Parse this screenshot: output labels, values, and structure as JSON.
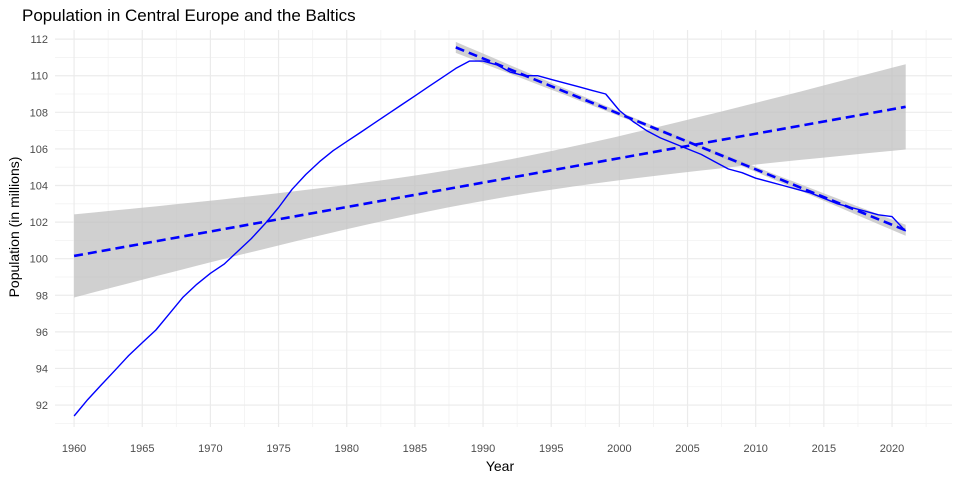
{
  "chart_data": {
    "type": "line",
    "title": "Population in Central Europe and the Baltics",
    "xlabel": "Year",
    "ylabel": "Population (in millions)",
    "xlim": [
      1958.6,
      2024.4
    ],
    "ylim": [
      90.8,
      112.5
    ],
    "x_ticks": [
      1960,
      1965,
      1970,
      1975,
      1980,
      1985,
      1990,
      1995,
      2000,
      2005,
      2010,
      2015,
      2020
    ],
    "y_ticks": [
      92,
      94,
      96,
      98,
      100,
      102,
      104,
      106,
      108,
      110,
      112
    ],
    "grid": true,
    "legend": "none",
    "colors": {
      "series": "#0000ff",
      "trend": "#0000ff",
      "band": "#bebebe"
    },
    "series": [
      {
        "x": [
          1960,
          1961,
          1962,
          1963,
          1964,
          1965,
          1966,
          1967,
          1968,
          1969,
          1970,
          1971,
          1972,
          1973,
          1974,
          1975,
          1976,
          1977,
          1978,
          1979,
          1980,
          1981,
          1982,
          1983,
          1984,
          1985,
          1986,
          1987,
          1988,
          1989,
          1990,
          1991,
          1992,
          1993,
          1994,
          1995,
          1996,
          1997,
          1998,
          1999,
          2000,
          2001,
          2002,
          2003,
          2004,
          2005,
          2006,
          2007,
          2008,
          2009,
          2010,
          2011,
          2012,
          2013,
          2014,
          2015,
          2016,
          2017,
          2018,
          2019,
          2020,
          2021
        ],
        "y": [
          91.4,
          92.3,
          93.1,
          93.9,
          94.7,
          95.4,
          96.1,
          97.0,
          97.9,
          98.6,
          99.2,
          99.7,
          100.4,
          101.1,
          101.9,
          102.8,
          103.8,
          104.6,
          105.3,
          105.9,
          106.4,
          106.9,
          107.4,
          107.9,
          108.4,
          108.9,
          109.4,
          109.9,
          110.4,
          110.8,
          110.8,
          110.6,
          110.2,
          110.0,
          110.0,
          109.8,
          109.6,
          109.4,
          109.2,
          109.0,
          108.1,
          107.5,
          107.0,
          106.6,
          106.3,
          106.0,
          105.7,
          105.3,
          104.9,
          104.7,
          104.4,
          104.2,
          104.0,
          103.8,
          103.6,
          103.3,
          103.0,
          102.8,
          102.6,
          102.4,
          102.3,
          101.5
        ]
      }
    ],
    "trend_lines": [
      {
        "x": [
          1960,
          2021
        ],
        "y": [
          100.15,
          108.3
        ],
        "band_lower": [
          97.85,
          106.05
        ],
        "band_upper": [
          102.45,
          110.6
        ],
        "band_mid": [
          1990,
          105.25,
          1.0
        ]
      },
      {
        "x": [
          1988,
          2021
        ],
        "y": [
          111.55,
          101.55
        ],
        "band_halfwidth": [
          0.3,
          0.1,
          0.3
        ]
      }
    ]
  }
}
